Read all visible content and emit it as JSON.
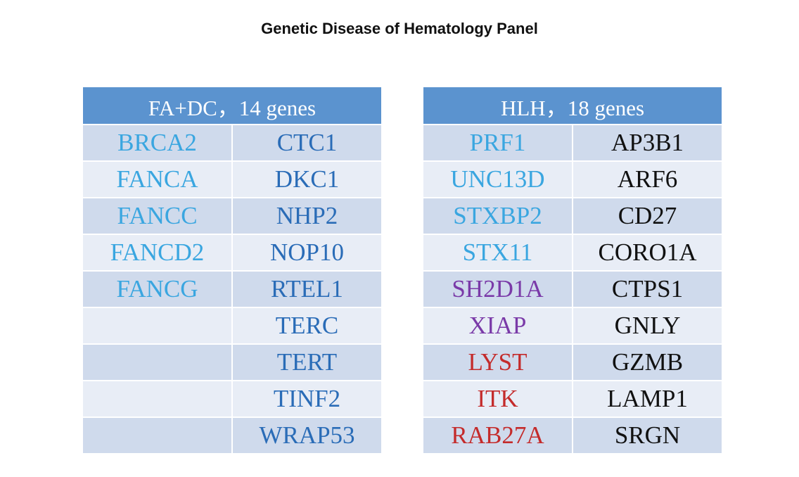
{
  "title": "Genetic Disease of Hematology Panel",
  "colors": {
    "header_bg": "#5b93cf",
    "row_odd": "#cfdaec",
    "row_even": "#e8edf6",
    "light_blue": "#3aa6e0",
    "dark_blue": "#2a6cb7",
    "purple": "#7a3aa8",
    "red": "#c42b2b",
    "black": "#111111"
  },
  "tables": [
    {
      "header": "FA+DC，14 genes",
      "rows": [
        {
          "c1": "BRCA2",
          "c1_color": "light_blue",
          "c2": "CTC1",
          "c2_color": "dark_blue"
        },
        {
          "c1": "FANCA",
          "c1_color": "light_blue",
          "c2": "DKC1",
          "c2_color": "dark_blue"
        },
        {
          "c1": "FANCC",
          "c1_color": "light_blue",
          "c2": "NHP2",
          "c2_color": "dark_blue"
        },
        {
          "c1": "FANCD2",
          "c1_color": "light_blue",
          "c2": "NOP10",
          "c2_color": "dark_blue"
        },
        {
          "c1": "FANCG",
          "c1_color": "light_blue",
          "c2": "RTEL1",
          "c2_color": "dark_blue"
        },
        {
          "c1": "",
          "c1_color": "light_blue",
          "c2": "TERC",
          "c2_color": "dark_blue"
        },
        {
          "c1": "",
          "c1_color": "light_blue",
          "c2": "TERT",
          "c2_color": "dark_blue"
        },
        {
          "c1": "",
          "c1_color": "light_blue",
          "c2": "TINF2",
          "c2_color": "dark_blue"
        },
        {
          "c1": "",
          "c1_color": "light_blue",
          "c2": "WRAP53",
          "c2_color": "dark_blue"
        }
      ]
    },
    {
      "header": "HLH，18 genes",
      "rows": [
        {
          "c1": "PRF1",
          "c1_color": "light_blue",
          "c2": "AP3B1",
          "c2_color": "black"
        },
        {
          "c1": "UNC13D",
          "c1_color": "light_blue",
          "c2": "ARF6",
          "c2_color": "black"
        },
        {
          "c1": "STXBP2",
          "c1_color": "light_blue",
          "c2": "CD27",
          "c2_color": "black"
        },
        {
          "c1": "STX11",
          "c1_color": "light_blue",
          "c2": "CORO1A",
          "c2_color": "black"
        },
        {
          "c1": "SH2D1A",
          "c1_color": "purple",
          "c2": "CTPS1",
          "c2_color": "black"
        },
        {
          "c1": "XIAP",
          "c1_color": "purple",
          "c2": "GNLY",
          "c2_color": "black"
        },
        {
          "c1": "LYST",
          "c1_color": "red",
          "c2": "GZMB",
          "c2_color": "black"
        },
        {
          "c1": "ITK",
          "c1_color": "red",
          "c2": "LAMP1",
          "c2_color": "black"
        },
        {
          "c1": "RAB27A",
          "c1_color": "red",
          "c2": "SRGN",
          "c2_color": "black"
        }
      ]
    }
  ]
}
